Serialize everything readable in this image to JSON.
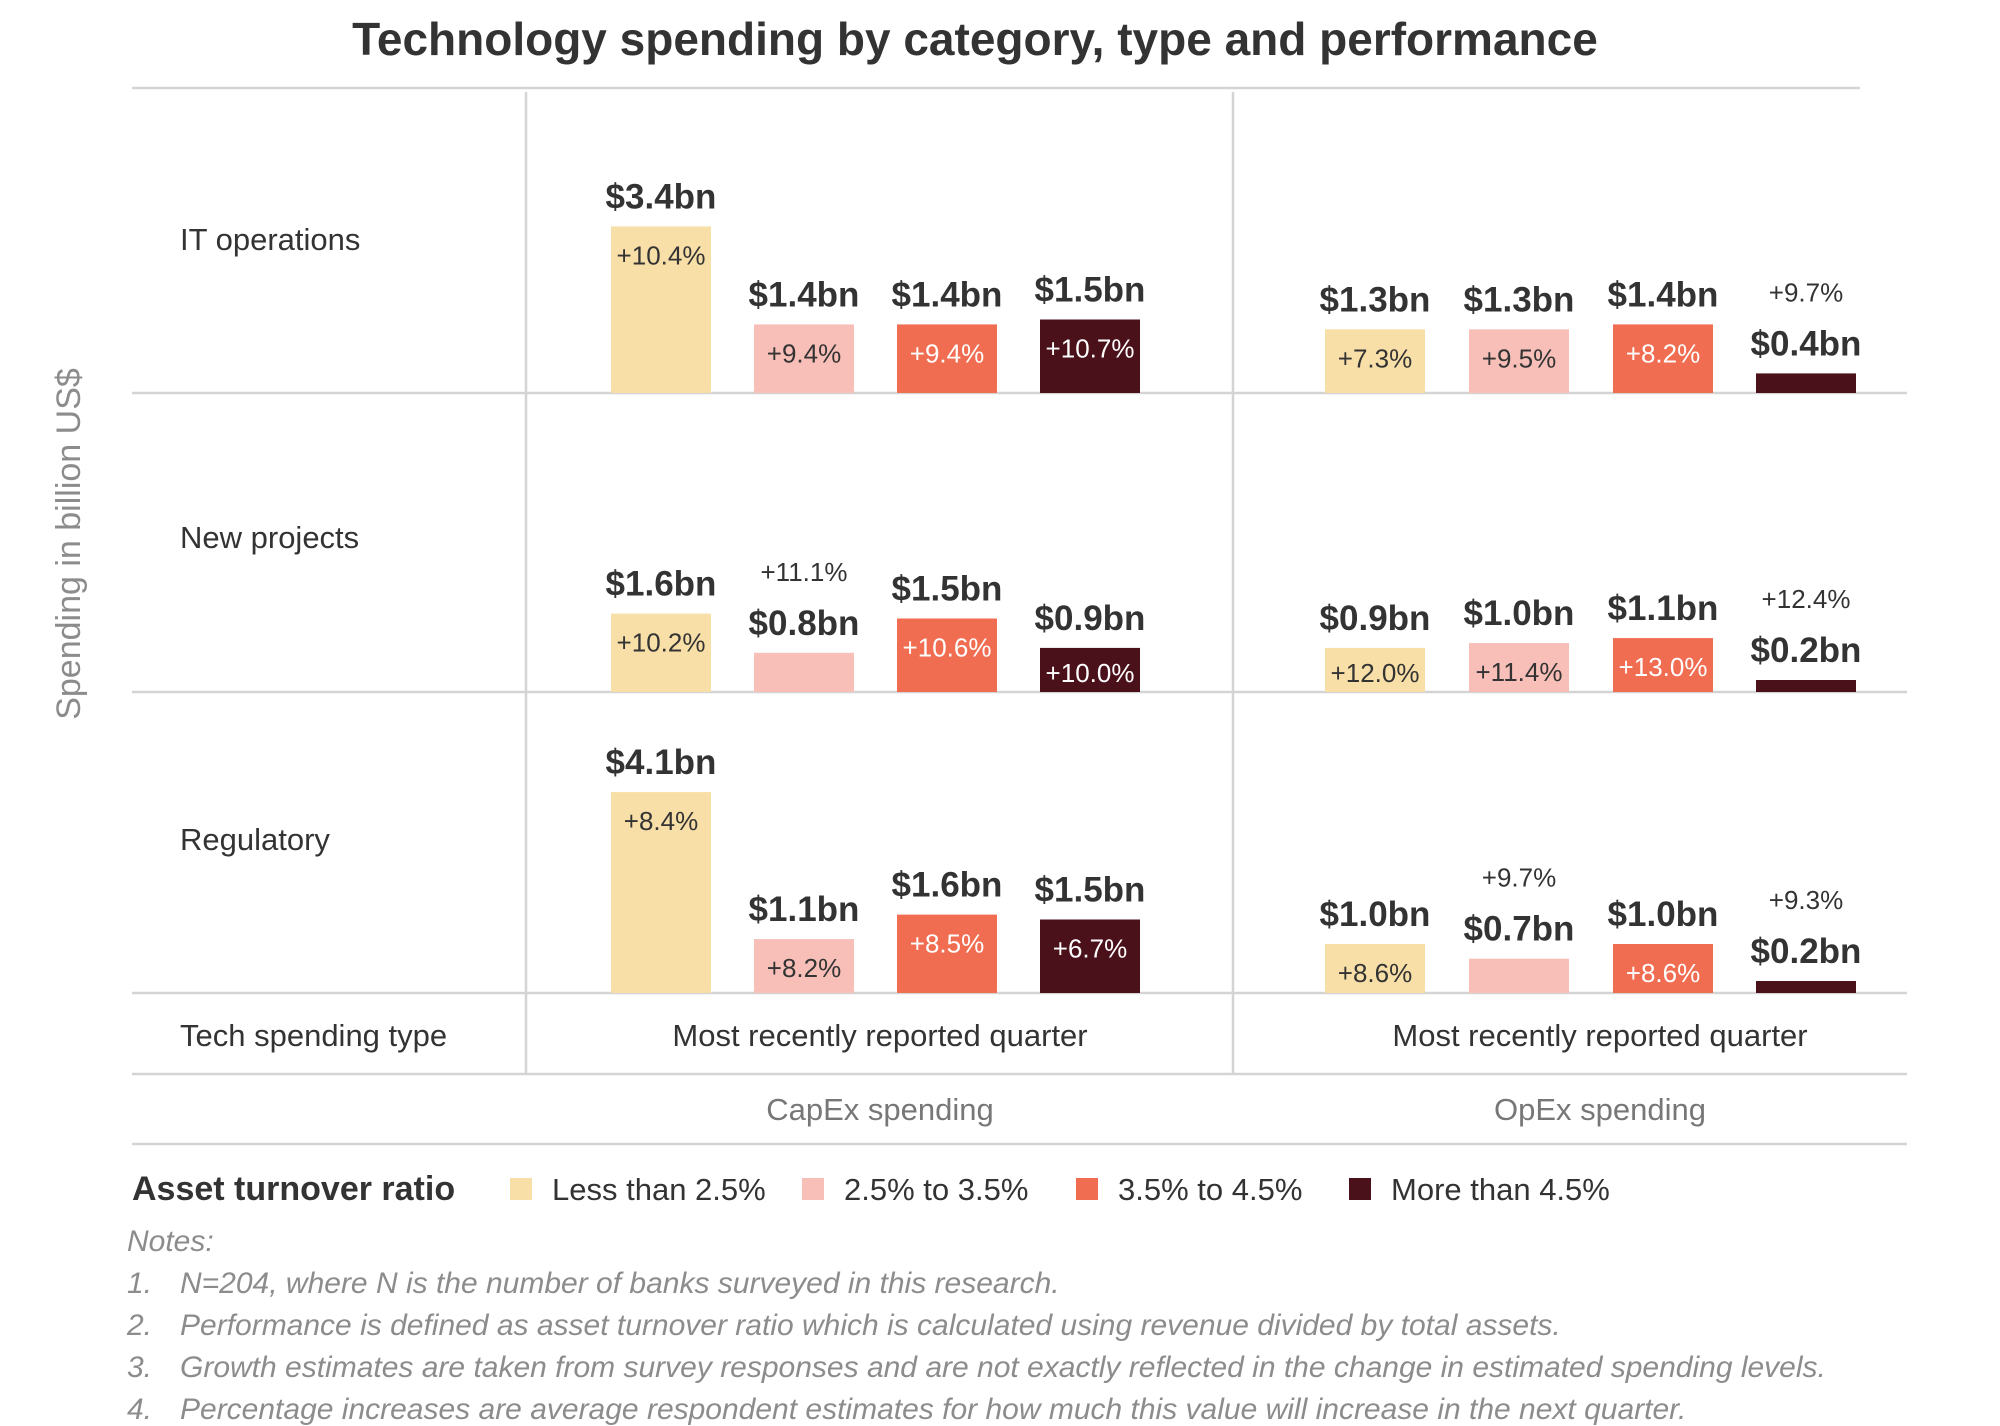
{
  "chart_data": {
    "type": "bar",
    "title": "Technology spending by category, type and performance",
    "ylabel": "Spending in billion US$",
    "rows": [
      "IT operations",
      "New projects",
      "Regulatory"
    ],
    "row_footer_label": "Tech spending type",
    "groups": [
      {
        "name": "CapEx spending",
        "sublabel": "Most recently reported quarter"
      },
      {
        "name": "OpEx spending",
        "sublabel": "Most recently reported quarter"
      }
    ],
    "legend": {
      "title": "Asset turnover ratio",
      "placement": "bottom",
      "items": [
        {
          "label": "Less than 2.5%",
          "color": "#f8dfa8"
        },
        {
          "label": "2.5% to 3.5%",
          "color": "#f8bfb8"
        },
        {
          "label": "3.5% to 4.5%",
          "color": "#f06d51"
        },
        {
          "label": "More than 4.5%",
          "color": "#4b111b"
        }
      ]
    },
    "series": [
      {
        "name": "Less than 2.5%",
        "values": [
          [
            3.4,
            1.3
          ],
          [
            1.6,
            0.9
          ],
          [
            4.1,
            1.0
          ]
        ],
        "value_labels": [
          [
            "$3.4bn",
            "$1.3bn"
          ],
          [
            "$1.6bn",
            "$0.9bn"
          ],
          [
            "$4.1bn",
            "$1.0bn"
          ]
        ],
        "growth_labels": [
          [
            "+10.4%",
            "+7.3%"
          ],
          [
            "+10.2%",
            "+12.0%"
          ],
          [
            "+8.4%",
            "+8.6%"
          ]
        ]
      },
      {
        "name": "2.5% to 3.5%",
        "values": [
          [
            1.4,
            1.3
          ],
          [
            0.8,
            1.0
          ],
          [
            1.1,
            0.7
          ]
        ],
        "value_labels": [
          [
            "$1.4bn",
            "$1.3bn"
          ],
          [
            "$0.8bn",
            "$1.0bn"
          ],
          [
            "$1.1bn",
            "$0.7bn"
          ]
        ],
        "growth_labels": [
          [
            "+9.4%",
            "+9.5%"
          ],
          [
            "+11.1%",
            "+11.4%"
          ],
          [
            "+8.2%",
            "+9.7%"
          ]
        ]
      },
      {
        "name": "3.5% to 4.5%",
        "values": [
          [
            1.4,
            1.4
          ],
          [
            1.5,
            1.1
          ],
          [
            1.6,
            1.0
          ]
        ],
        "value_labels": [
          [
            "$1.4bn",
            "$1.4bn"
          ],
          [
            "$1.5bn",
            "$1.1bn"
          ],
          [
            "$1.6bn",
            "$1.0bn"
          ]
        ],
        "growth_labels": [
          [
            "+9.4%",
            "+8.2%"
          ],
          [
            "+10.6%",
            "+13.0%"
          ],
          [
            "+8.5%",
            "+8.6%"
          ]
        ]
      },
      {
        "name": "More than 4.5%",
        "values": [
          [
            1.5,
            0.4
          ],
          [
            0.9,
            0.2
          ],
          [
            1.5,
            0.2
          ]
        ],
        "value_labels": [
          [
            "$1.5bn",
            "$0.4bn"
          ],
          [
            "$0.9bn",
            "$0.2bn"
          ],
          [
            "$1.5bn",
            "$0.2bn"
          ]
        ],
        "growth_labels": [
          [
            "+10.7%",
            "+9.7%"
          ],
          [
            "+10.0%",
            "+12.4%"
          ],
          [
            "+6.7%",
            "+9.3%"
          ]
        ]
      }
    ],
    "grid": true
  },
  "notes": {
    "heading": "Notes:",
    "items": [
      {
        "num": "1.",
        "text": "N=204, where N is the number of banks surveyed in this research."
      },
      {
        "num": "2.",
        "text": "Performance is defined as asset turnover ratio which is calculated using revenue divided by total assets."
      },
      {
        "num": "3.",
        "text": "Growth estimates are taken from survey responses and are not exactly reflected in the change in estimated spending levels."
      },
      {
        "num": "4.",
        "text": "Percentage increases are average respondent estimates for how much this value will increase in the next quarter."
      }
    ]
  }
}
